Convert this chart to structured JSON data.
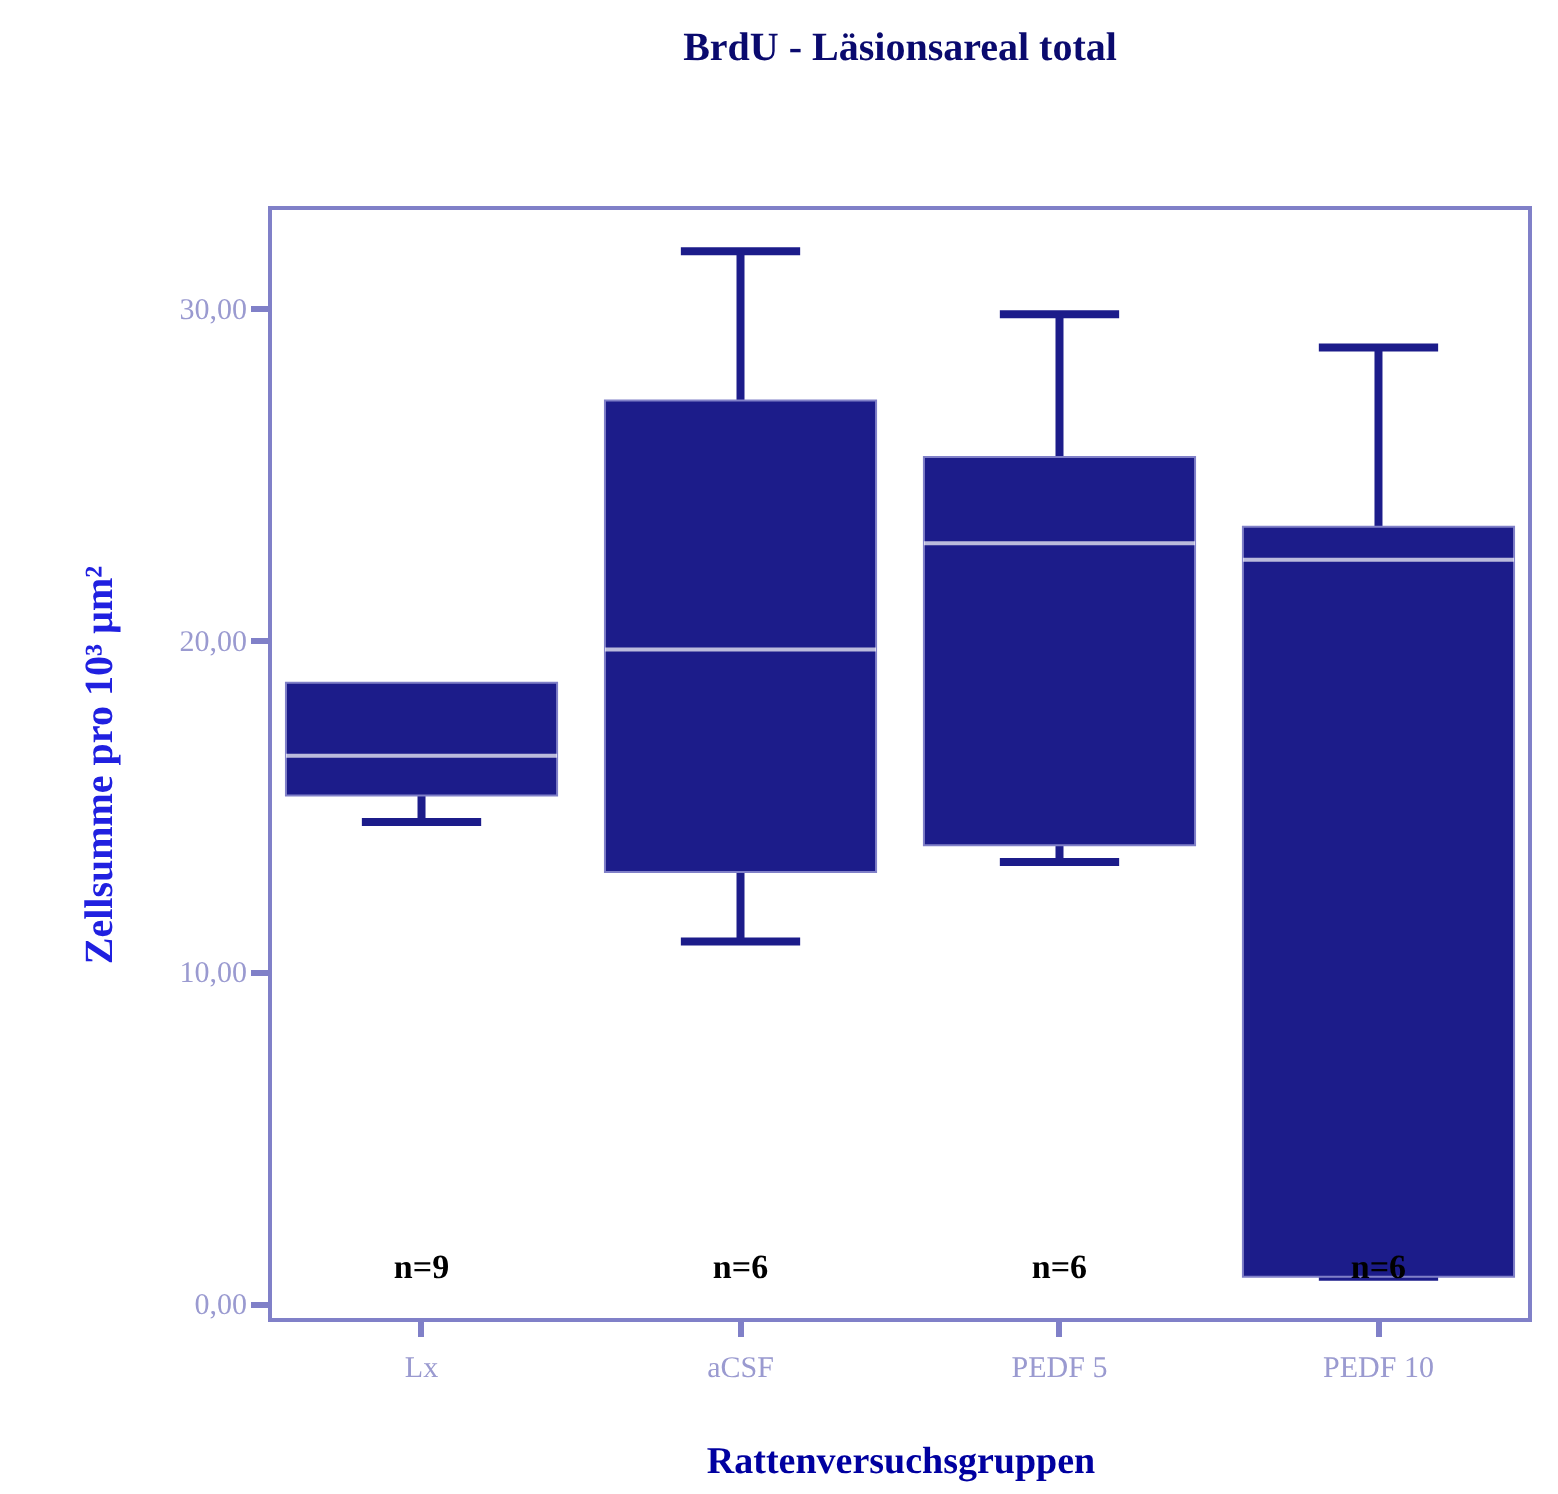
{
  "chart_data": {
    "type": "box",
    "title": "BrdU - Läsionsareal total",
    "xlabel": "Rattenversuchsgruppen",
    "ylabel": "Zellsumme pro 10³ µm²",
    "categories": [
      "Lx",
      "aCSF",
      "PEDF 5",
      "PEDF 10"
    ],
    "series": [
      {
        "color": "#1c1c8a",
        "boxes": [
          {
            "low": 14.5,
            "q1": 15.3,
            "median": 16.5,
            "q3": 18.7,
            "high": 18.7
          },
          {
            "low": 10.9,
            "q1": 13.0,
            "median": 19.7,
            "q3": 27.2,
            "high": 31.7
          },
          {
            "low": 13.3,
            "q1": 13.8,
            "median": 22.9,
            "q3": 25.5,
            "high": 29.8
          },
          {
            "low": 0.8,
            "q1": 0.8,
            "median": 22.4,
            "q3": 23.4,
            "high": 28.8
          }
        ]
      }
    ],
    "ylim": [
      -0.5,
      33
    ],
    "yticks": [
      {
        "value": 0,
        "label": "0,00"
      },
      {
        "value": 10,
        "label": "10,00"
      },
      {
        "value": 20,
        "label": "20,00"
      },
      {
        "value": 30,
        "label": "30,00"
      }
    ],
    "annotations": [
      "n=9",
      "n=6",
      "n=6",
      "n=6"
    ]
  }
}
